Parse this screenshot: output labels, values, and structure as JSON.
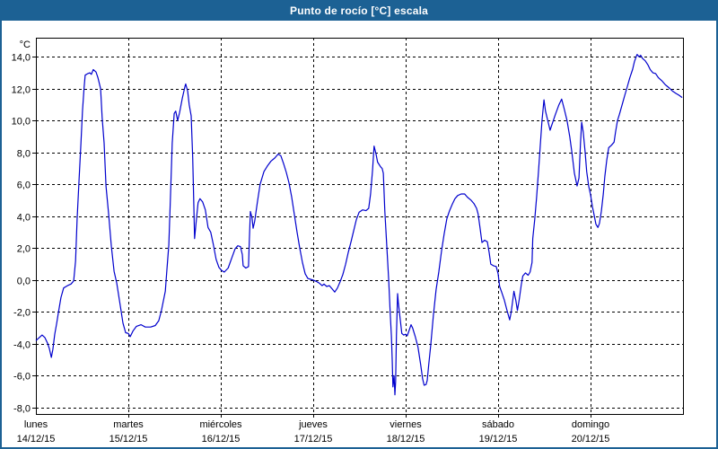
{
  "window": {
    "title": "Punto de rocío [°C] escala"
  },
  "colors": {
    "titlebar": "#1c6194",
    "window_border": "#1c6194",
    "plot_border": "#000000",
    "gridline": "#000000",
    "line": "#0000cd",
    "background": "#ffffff",
    "text": "#000000"
  },
  "chart_data": {
    "type": "line",
    "title": "Punto de rocío [°C] escala",
    "unit_label": "°C",
    "series_name": "Punto de rocío",
    "grid": "dashed",
    "legend": "none",
    "x_axis": {
      "hours_span": 168,
      "gridline_hours": [
        24,
        48,
        72,
        96,
        120,
        144
      ],
      "day_labels": [
        {
          "name": "lunes",
          "date": "14/12/15"
        },
        {
          "name": "martes",
          "date": "15/12/15"
        },
        {
          "name": "miércoles",
          "date": "16/12/15"
        },
        {
          "name": "jueves",
          "date": "17/12/15"
        },
        {
          "name": "viernes",
          "date": "18/12/15"
        },
        {
          "name": "sábado",
          "date": "19/12/15"
        },
        {
          "name": "domingo",
          "date": "20/12/15"
        }
      ]
    },
    "y_axis": {
      "range": [
        -8.4,
        15.2
      ],
      "ticks": [
        {
          "value": 14,
          "label": "14,0"
        },
        {
          "value": 12,
          "label": "12,0"
        },
        {
          "value": 10,
          "label": "10,0"
        },
        {
          "value": 8,
          "label": "8,0"
        },
        {
          "value": 6,
          "label": "6,0"
        },
        {
          "value": 4,
          "label": "4,0"
        },
        {
          "value": 2,
          "label": "2,0"
        },
        {
          "value": 0,
          "label": "0,0"
        },
        {
          "value": -2,
          "label": "-2,0"
        },
        {
          "value": -4,
          "label": "-4,0"
        },
        {
          "value": -6,
          "label": "-6,0"
        },
        {
          "value": -8,
          "label": "-8,0"
        }
      ]
    },
    "points_hours_degC": [
      [
        0,
        -3.8
      ],
      [
        0.9,
        -3.6
      ],
      [
        1.6,
        -3.45
      ],
      [
        2.3,
        -3.6
      ],
      [
        3,
        -3.95
      ],
      [
        3.5,
        -4.3
      ],
      [
        4,
        -4.85
      ],
      [
        4.4,
        -4.35
      ],
      [
        4.9,
        -3.4
      ],
      [
        5.4,
        -2.7
      ],
      [
        5.8,
        -2.1
      ],
      [
        6.5,
        -1.1
      ],
      [
        7.2,
        -0.5
      ],
      [
        8.2,
        -0.35
      ],
      [
        9.1,
        -0.25
      ],
      [
        9.8,
        -0.05
      ],
      [
        10.3,
        1.2
      ],
      [
        10.7,
        3.8
      ],
      [
        11.2,
        6.3
      ],
      [
        11.7,
        8.6
      ],
      [
        12.1,
        10.6
      ],
      [
        12.5,
        12
      ],
      [
        12.8,
        12.85
      ],
      [
        13.5,
        12.95
      ],
      [
        14,
        13
      ],
      [
        14.4,
        12.9
      ],
      [
        14.9,
        13.2
      ],
      [
        15.6,
        13.05
      ],
      [
        16.1,
        12.7
      ],
      [
        16.8,
        12
      ],
      [
        17.2,
        10.2
      ],
      [
        17.7,
        8.6
      ],
      [
        18.2,
        5.9
      ],
      [
        18.9,
        4.1
      ],
      [
        19.6,
        2.1
      ],
      [
        20.3,
        0.55
      ],
      [
        21,
        -0.2
      ],
      [
        21.9,
        -1.6
      ],
      [
        22.6,
        -2.7
      ],
      [
        23.3,
        -3.3
      ],
      [
        24,
        -3.35
      ],
      [
        24.5,
        -3.55
      ],
      [
        25.2,
        -3.2
      ],
      [
        26.1,
        -2.9
      ],
      [
        27.3,
        -2.8
      ],
      [
        28.4,
        -2.95
      ],
      [
        29.8,
        -2.95
      ],
      [
        31,
        -2.85
      ],
      [
        31.9,
        -2.55
      ],
      [
        32.6,
        -1.9
      ],
      [
        33.6,
        -0.7
      ],
      [
        34,
        0.6
      ],
      [
        34.5,
        2.2
      ],
      [
        34.9,
        5
      ],
      [
        35.4,
        8.6
      ],
      [
        35.9,
        10.45
      ],
      [
        36.3,
        10.6
      ],
      [
        36.8,
        10
      ],
      [
        37.3,
        10.5
      ],
      [
        38,
        11.4
      ],
      [
        38.7,
        12.15
      ],
      [
        38.9,
        12.3
      ],
      [
        39.4,
        11.85
      ],
      [
        39.8,
        11
      ],
      [
        40.3,
        10.3
      ],
      [
        40.7,
        7.7
      ],
      [
        41,
        4.6
      ],
      [
        41.2,
        2.6
      ],
      [
        41.7,
        3.9
      ],
      [
        42.1,
        4.85
      ],
      [
        42.6,
        5.1
      ],
      [
        43.3,
        4.9
      ],
      [
        44,
        4.4
      ],
      [
        44.7,
        3.3
      ],
      [
        45.4,
        3
      ],
      [
        46.1,
        2.2
      ],
      [
        46.8,
        1.3
      ],
      [
        47.5,
        0.8
      ],
      [
        48.2,
        0.6
      ],
      [
        48.9,
        0.5
      ],
      [
        49.9,
        0.75
      ],
      [
        50.8,
        1.35
      ],
      [
        51.7,
        1.95
      ],
      [
        52.4,
        2.15
      ],
      [
        53.1,
        2.1
      ],
      [
        53.6,
        1.6
      ],
      [
        53.8,
        0.9
      ],
      [
        54.5,
        0.75
      ],
      [
        55.2,
        0.85
      ],
      [
        55.4,
        2.5
      ],
      [
        55.7,
        4.3
      ],
      [
        56.1,
        3.9
      ],
      [
        56.4,
        3.25
      ],
      [
        56.8,
        3.7
      ],
      [
        57.5,
        4.9
      ],
      [
        58.2,
        6
      ],
      [
        59.2,
        6.8
      ],
      [
        60.1,
        7.15
      ],
      [
        61,
        7.45
      ],
      [
        62,
        7.65
      ],
      [
        62.9,
        7.9
      ],
      [
        63.6,
        7.8
      ],
      [
        64.3,
        7.3
      ],
      [
        65,
        6.75
      ],
      [
        65.7,
        6.1
      ],
      [
        66.4,
        5.2
      ],
      [
        67.1,
        4.1
      ],
      [
        67.8,
        3
      ],
      [
        68.5,
        2
      ],
      [
        69.2,
        1.1
      ],
      [
        69.9,
        0.4
      ],
      [
        70.6,
        0.1
      ],
      [
        71.3,
        0.05
      ],
      [
        72,
        0
      ],
      [
        72.9,
        -0.1
      ],
      [
        73.6,
        -0.2
      ],
      [
        74.3,
        -0.35
      ],
      [
        74.8,
        -0.25
      ],
      [
        75.5,
        -0.4
      ],
      [
        76.2,
        -0.35
      ],
      [
        76.9,
        -0.55
      ],
      [
        77.6,
        -0.75
      ],
      [
        78.3,
        -0.5
      ],
      [
        79,
        -0.1
      ],
      [
        79.7,
        0.35
      ],
      [
        80.4,
        1
      ],
      [
        81.1,
        1.75
      ],
      [
        81.8,
        2.4
      ],
      [
        82.5,
        3.1
      ],
      [
        83.2,
        3.8
      ],
      [
        83.9,
        4.25
      ],
      [
        84.8,
        4.4
      ],
      [
        85.7,
        4.35
      ],
      [
        86.4,
        4.5
      ],
      [
        86.9,
        5.4
      ],
      [
        87.4,
        6.9
      ],
      [
        87.8,
        8.4
      ],
      [
        88.3,
        7.9
      ],
      [
        88.7,
        7.4
      ],
      [
        89.5,
        7.1
      ],
      [
        89.9,
        7
      ],
      [
        90.2,
        6.7
      ],
      [
        90.6,
        4.3
      ],
      [
        91.1,
        2.1
      ],
      [
        91.6,
        0
      ],
      [
        92,
        -2.1
      ],
      [
        92.3,
        -3.5
      ],
      [
        92.5,
        -5
      ],
      [
        92.7,
        -6.7
      ],
      [
        93,
        -6
      ],
      [
        93.2,
        -7.2
      ],
      [
        93.4,
        -6.4
      ],
      [
        93.6,
        -3.5
      ],
      [
        93.9,
        -0.85
      ],
      [
        94.1,
        -1.4
      ],
      [
        94.6,
        -2.5
      ],
      [
        95,
        -3.35
      ],
      [
        95.5,
        -3.45
      ],
      [
        96,
        -3.4
      ],
      [
        96.4,
        -3.5
      ],
      [
        96.9,
        -3.15
      ],
      [
        97.4,
        -2.8
      ],
      [
        97.8,
        -3
      ],
      [
        98.5,
        -3.55
      ],
      [
        99.2,
        -4.2
      ],
      [
        99.9,
        -5.3
      ],
      [
        100.4,
        -6.2
      ],
      [
        100.8,
        -6.6
      ],
      [
        101.3,
        -6.55
      ],
      [
        101.6,
        -6.3
      ],
      [
        102,
        -5.3
      ],
      [
        102.5,
        -4.1
      ],
      [
        103.2,
        -2.2
      ],
      [
        103.9,
        -0.6
      ],
      [
        104.6,
        0.5
      ],
      [
        105.3,
        1.8
      ],
      [
        106,
        2.9
      ],
      [
        106.7,
        3.85
      ],
      [
        107.4,
        4.35
      ],
      [
        108.1,
        4.75
      ],
      [
        108.8,
        5.1
      ],
      [
        109.5,
        5.3
      ],
      [
        110.4,
        5.4
      ],
      [
        111.3,
        5.4
      ],
      [
        112,
        5.2
      ],
      [
        113,
        5
      ],
      [
        113.7,
        4.8
      ],
      [
        114.4,
        4.5
      ],
      [
        114.8,
        4.15
      ],
      [
        115.3,
        3.3
      ],
      [
        115.8,
        2.35
      ],
      [
        116.5,
        2.5
      ],
      [
        117.2,
        2.4
      ],
      [
        117.7,
        1.7
      ],
      [
        118.1,
        1
      ],
      [
        118.8,
        0.9
      ],
      [
        119.5,
        0.85
      ],
      [
        120,
        0.4
      ],
      [
        120.4,
        -0.4
      ],
      [
        120.9,
        -0.75
      ],
      [
        121.6,
        -1.25
      ],
      [
        122.3,
        -1.9
      ],
      [
        123,
        -2.5
      ],
      [
        123.4,
        -2
      ],
      [
        123.9,
        -1.1
      ],
      [
        124.1,
        -0.7
      ],
      [
        124.6,
        -1.25
      ],
      [
        125,
        -1.9
      ],
      [
        125.5,
        -1.2
      ],
      [
        126,
        -0.3
      ],
      [
        126.4,
        0.25
      ],
      [
        127.1,
        0.45
      ],
      [
        127.8,
        0.3
      ],
      [
        128.3,
        0.5
      ],
      [
        128.8,
        1.1
      ],
      [
        129,
        2.6
      ],
      [
        129.5,
        3.8
      ],
      [
        130,
        5.2
      ],
      [
        130.5,
        6.9
      ],
      [
        130.9,
        8.3
      ],
      [
        131.4,
        10
      ],
      [
        131.9,
        11.3
      ],
      [
        132.3,
        10.6
      ],
      [
        132.8,
        10.1
      ],
      [
        133.5,
        9.4
      ],
      [
        134.2,
        9.9
      ],
      [
        134.9,
        10.4
      ],
      [
        135.8,
        11
      ],
      [
        136.5,
        11.35
      ],
      [
        137.2,
        10.7
      ],
      [
        137.9,
        10
      ],
      [
        138.6,
        9
      ],
      [
        139.1,
        8.1
      ],
      [
        139.8,
        6.7
      ],
      [
        140.5,
        5.9
      ],
      [
        141,
        6.4
      ],
      [
        141.4,
        8.6
      ],
      [
        141.7,
        9.9
      ],
      [
        142.1,
        9.3
      ],
      [
        142.6,
        8
      ],
      [
        143,
        6.8
      ],
      [
        143.5,
        5.9
      ],
      [
        144,
        5.35
      ],
      [
        144.5,
        4.6
      ],
      [
        144.9,
        4.1
      ],
      [
        145.4,
        3.5
      ],
      [
        145.9,
        3.3
      ],
      [
        146.3,
        3.55
      ],
      [
        146.8,
        4.3
      ],
      [
        147.3,
        5.4
      ],
      [
        147.7,
        6.5
      ],
      [
        148.2,
        7.5
      ],
      [
        148.7,
        8.3
      ],
      [
        149.4,
        8.45
      ],
      [
        150.1,
        8.65
      ],
      [
        150.5,
        9.3
      ],
      [
        151,
        10
      ],
      [
        151.5,
        10.4
      ],
      [
        152.2,
        11
      ],
      [
        152.9,
        11.6
      ],
      [
        153.5,
        12.1
      ],
      [
        154.2,
        12.7
      ],
      [
        154.9,
        13.2
      ],
      [
        155.4,
        13.7
      ],
      [
        155.9,
        14.05
      ],
      [
        156.1,
        14.15
      ],
      [
        156.6,
        14
      ],
      [
        157,
        14.1
      ],
      [
        157.5,
        13.9
      ],
      [
        158.2,
        13.75
      ],
      [
        158.9,
        13.5
      ],
      [
        159.5,
        13.2
      ],
      [
        160.2,
        13
      ],
      [
        160.9,
        12.95
      ],
      [
        161.6,
        12.7
      ],
      [
        162.5,
        12.5
      ],
      [
        163.4,
        12.25
      ],
      [
        164.4,
        12.05
      ],
      [
        165.3,
        11.85
      ],
      [
        166.2,
        11.7
      ],
      [
        166.9,
        11.6
      ],
      [
        167.8,
        11.45
      ]
    ]
  }
}
